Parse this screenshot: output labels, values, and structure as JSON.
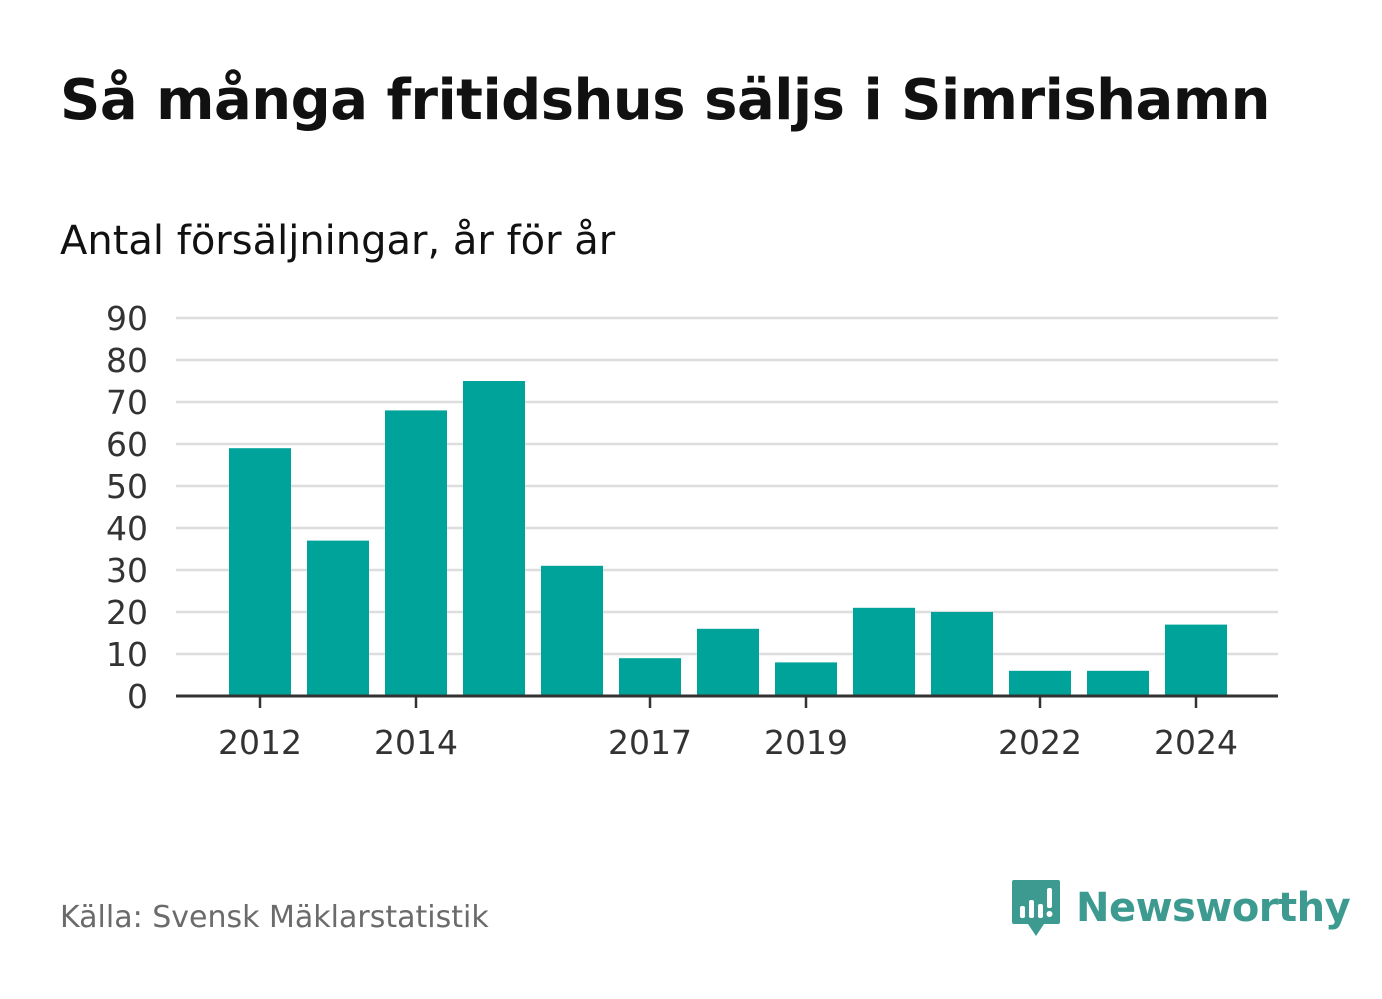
{
  "header": {
    "title": "Så många fritidshus säljs i Simrishamn",
    "subtitle": "Antal försäljningar, år för år"
  },
  "footer": {
    "source": "Källa: Svensk Mäklarstatistik",
    "brand": "Newsworthy",
    "brand_icon": "bar-chart-speech-bubble-icon"
  },
  "colors": {
    "bar": "#00a39a",
    "grid": "#dddddd",
    "axis": "#333333",
    "brand": "#3d9a90"
  },
  "chart_data": {
    "type": "bar",
    "title": "Så många fritidshus säljs i Simrishamn",
    "subtitle": "Antal försäljningar, år för år",
    "categories": [
      "2012",
      "2013",
      "2014",
      "2015",
      "2016",
      "2017",
      "2018",
      "2019",
      "2020",
      "2021",
      "2022",
      "2023",
      "2024"
    ],
    "x_tick_labels": [
      "2012",
      "2014",
      "2017",
      "2019",
      "2022",
      "2024"
    ],
    "values": [
      59,
      37,
      68,
      75,
      31,
      9,
      16,
      8,
      21,
      20,
      6,
      6,
      17
    ],
    "y_ticks": [
      "0",
      "10",
      "20",
      "30",
      "40",
      "50",
      "60",
      "70",
      "80",
      "90"
    ],
    "ylim": [
      0,
      90
    ],
    "grid": true,
    "xlabel": "",
    "ylabel": ""
  }
}
